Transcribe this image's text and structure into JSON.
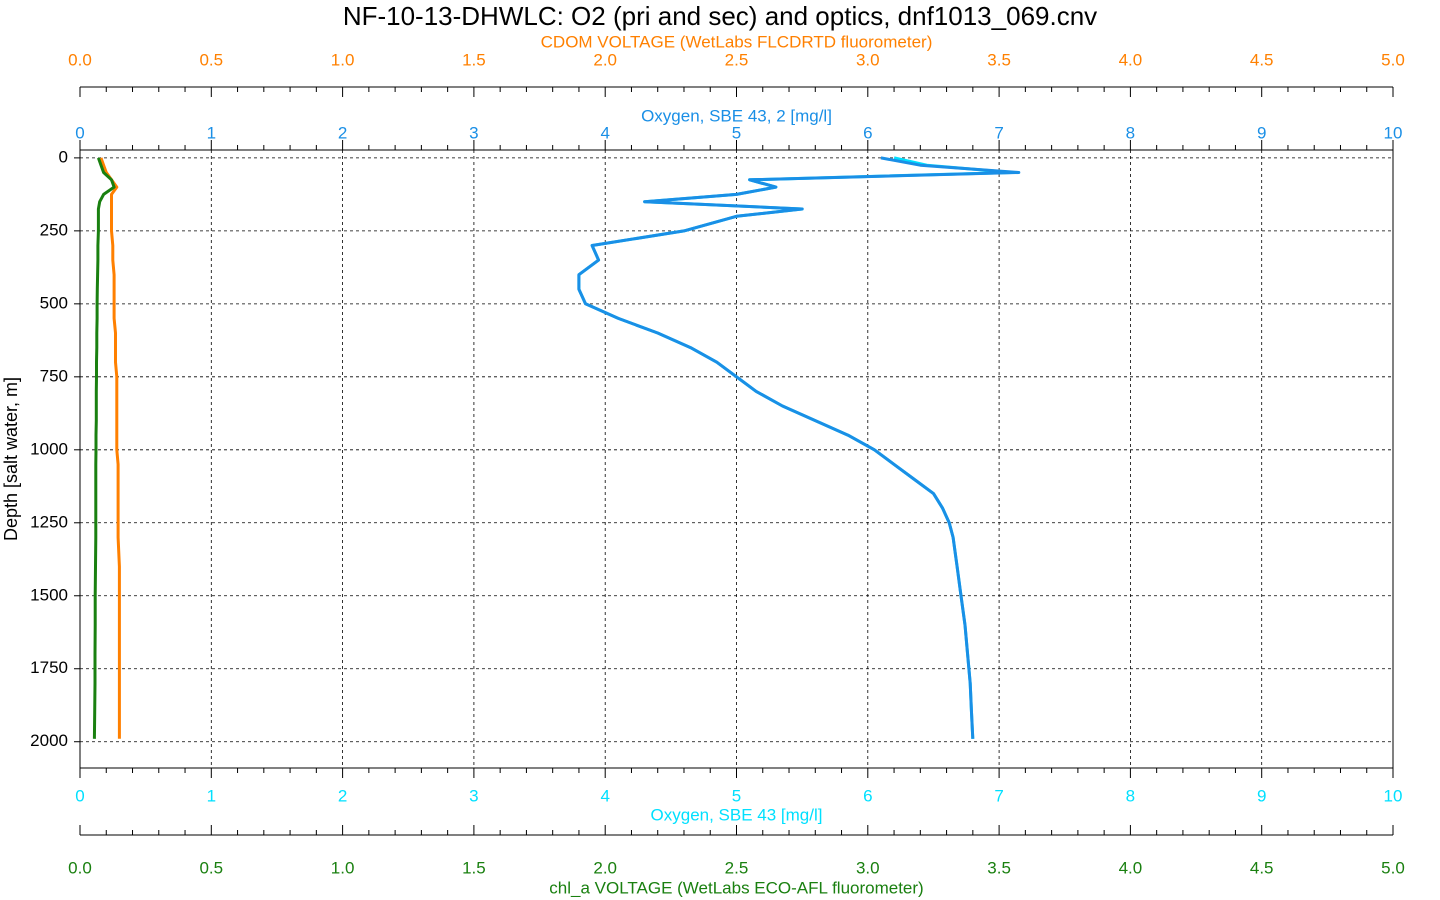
{
  "chart_data": {
    "type": "line",
    "title": "NF-10-13-DHWLC: O2 (pri and sec) and optics, dnf1013_069.cnv",
    "y": {
      "label": "Depth [salt water, m]",
      "ylim": [
        -27,
        2090
      ],
      "yticks": [
        0,
        250,
        500,
        750,
        1000,
        1250,
        1500,
        1750,
        2000
      ],
      "grid": true,
      "values": [
        0,
        25,
        50,
        75,
        100,
        125,
        150,
        175,
        200,
        250,
        300,
        350,
        400,
        450,
        500,
        550,
        600,
        650,
        700,
        750,
        800,
        850,
        900,
        950,
        1000,
        1050,
        1100,
        1150,
        1200,
        1250,
        1300,
        1400,
        1500,
        1600,
        1700,
        1800,
        1900,
        1990
      ]
    },
    "x_axes": [
      {
        "label": "CDOM VOLTAGE (WetLabs FLCDRTD fluorometer)",
        "color": "#ff8000",
        "position": "top",
        "xlim": [
          0,
          5
        ],
        "xticks": [
          {
            "value": 0,
            "label": "0.0"
          },
          0.5,
          {
            "value": 1,
            "label": "1.0"
          },
          1.5,
          {
            "value": 2,
            "label": "2.0"
          },
          2.5,
          {
            "value": 3,
            "label": "3.0"
          },
          3.5,
          {
            "value": 4,
            "label": "4.0"
          },
          4.5,
          {
            "value": 5,
            "label": "5.0"
          }
        ],
        "values": [
          0.08,
          0.09,
          0.1,
          0.12,
          0.14,
          0.12,
          0.12,
          0.12,
          0.12,
          0.12,
          0.125,
          0.125,
          0.13,
          0.13,
          0.13,
          0.13,
          0.135,
          0.135,
          0.135,
          0.14,
          0.14,
          0.14,
          0.14,
          0.14,
          0.14,
          0.145,
          0.145,
          0.145,
          0.145,
          0.145,
          0.145,
          0.15,
          0.15,
          0.15,
          0.15,
          0.15,
          0.15,
          0.15
        ]
      },
      {
        "label": "Oxygen, SBE 43 [mg/l]",
        "color": "#00e0ff",
        "position": "bottom-inner",
        "grid": true,
        "xlim": [
          0,
          10
        ],
        "xticks": [
          0,
          1,
          2,
          3,
          4,
          5,
          6,
          7,
          8,
          9,
          10
        ],
        "values": [
          6.2,
          6.45,
          7.1,
          5.1,
          5.3,
          5.0,
          4.3,
          5.5,
          5.0,
          4.6,
          3.9,
          3.95,
          3.8,
          3.8,
          3.85,
          4.1,
          4.4,
          4.65,
          4.85,
          5.0,
          5.15,
          5.35,
          5.6,
          5.85,
          6.05,
          6.2,
          6.35,
          6.5,
          6.57,
          6.62,
          6.65,
          6.68,
          6.71,
          6.74,
          6.76,
          6.78,
          6.79,
          6.8
        ]
      },
      {
        "label": "Oxygen, SBE 43, 2 [mg/l]",
        "color": "#1a8fe6",
        "position": "top-inner",
        "xlim": [
          0,
          10
        ],
        "xticks": [
          0,
          1,
          2,
          3,
          4,
          5,
          6,
          7,
          8,
          9,
          10
        ],
        "values": [
          6.1,
          6.4,
          7.15,
          5.1,
          5.3,
          5.0,
          4.3,
          5.5,
          5.0,
          4.6,
          3.9,
          3.95,
          3.8,
          3.8,
          3.85,
          4.1,
          4.4,
          4.65,
          4.85,
          5.0,
          5.15,
          5.35,
          5.6,
          5.85,
          6.05,
          6.2,
          6.35,
          6.5,
          6.57,
          6.62,
          6.65,
          6.68,
          6.71,
          6.74,
          6.76,
          6.78,
          6.79,
          6.8
        ]
      },
      {
        "label": "chl_a VOLTAGE (WetLabs ECO-AFL fluorometer)",
        "color": "#1a8010",
        "position": "bottom",
        "xlim": [
          0,
          5
        ],
        "xticks": [
          {
            "value": 0,
            "label": "0.0"
          },
          0.5,
          {
            "value": 1,
            "label": "1.0"
          },
          1.5,
          {
            "value": 2,
            "label": "2.0"
          },
          2.5,
          {
            "value": 3,
            "label": "3.0"
          },
          3.5,
          {
            "value": 4,
            "label": "4.0"
          },
          4.5,
          {
            "value": 5,
            "label": "5.0"
          }
        ],
        "values": [
          0.07,
          0.08,
          0.09,
          0.12,
          0.13,
          0.09,
          0.075,
          0.07,
          0.07,
          0.07,
          0.068,
          0.068,
          0.067,
          0.066,
          0.065,
          0.065,
          0.064,
          0.064,
          0.063,
          0.063,
          0.062,
          0.062,
          0.062,
          0.061,
          0.061,
          0.06,
          0.06,
          0.06,
          0.06,
          0.06,
          0.06,
          0.059,
          0.058,
          0.058,
          0.057,
          0.057,
          0.056,
          0.055
        ]
      }
    ]
  }
}
